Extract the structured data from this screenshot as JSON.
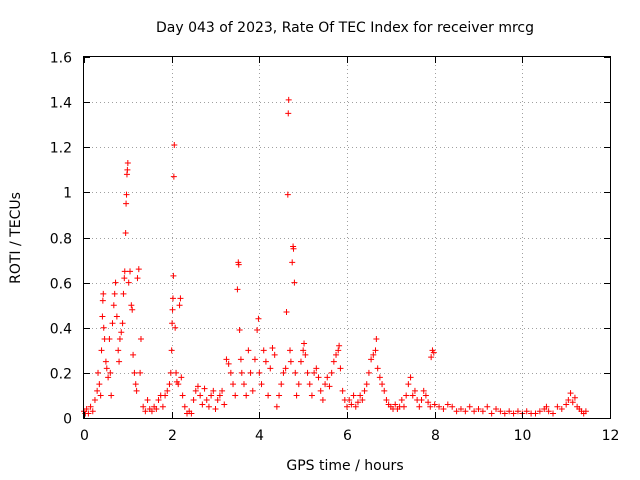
{
  "chart_data": {
    "type": "scatter",
    "title": "Day 043 of 2023, Rate Of TEC Index for receiver mrcg",
    "xlabel": "GPS time / hours",
    "ylabel": "ROTI / TECUs",
    "xlim": [
      0,
      12
    ],
    "ylim": [
      0,
      1.6
    ],
    "x_ticks": [
      "0",
      "2",
      "4",
      "6",
      "8",
      "10",
      "12"
    ],
    "y_ticks": [
      "0",
      "0.2",
      "0.4",
      "0.6",
      "0.8",
      "1",
      "1.2",
      "1.4",
      "1.6"
    ],
    "grid": true,
    "marker": "+",
    "series": [
      {
        "color": "#ff0000",
        "points": [
          [
            0.0,
            0.03
          ],
          [
            0.03,
            0.02
          ],
          [
            0.06,
            0.04
          ],
          [
            0.1,
            0.02
          ],
          [
            0.15,
            0.05
          ],
          [
            0.2,
            0.03
          ],
          [
            0.25,
            0.08
          ],
          [
            0.3,
            0.12
          ],
          [
            0.32,
            0.2
          ],
          [
            0.35,
            0.15
          ],
          [
            0.38,
            0.1
          ],
          [
            0.4,
            0.3
          ],
          [
            0.42,
            0.45
          ],
          [
            0.43,
            0.52
          ],
          [
            0.44,
            0.55
          ],
          [
            0.45,
            0.4
          ],
          [
            0.47,
            0.35
          ],
          [
            0.5,
            0.25
          ],
          [
            0.52,
            0.22
          ],
          [
            0.55,
            0.18
          ],
          [
            0.58,
            0.35
          ],
          [
            0.6,
            0.2
          ],
          [
            0.62,
            0.1
          ],
          [
            0.65,
            0.42
          ],
          [
            0.68,
            0.5
          ],
          [
            0.7,
            0.55
          ],
          [
            0.72,
            0.6
          ],
          [
            0.75,
            0.45
          ],
          [
            0.78,
            0.3
          ],
          [
            0.8,
            0.25
          ],
          [
            0.82,
            0.35
          ],
          [
            0.85,
            0.38
          ],
          [
            0.88,
            0.42
          ],
          [
            0.9,
            0.55
          ],
          [
            0.92,
            0.62
          ],
          [
            0.93,
            0.65
          ],
          [
            0.95,
            0.82
          ],
          [
            0.96,
            0.95
          ],
          [
            0.97,
            0.99
          ],
          [
            0.98,
            1.08
          ],
          [
            0.99,
            1.1
          ],
          [
            1.0,
            1.13
          ],
          [
            1.02,
            0.6
          ],
          [
            1.05,
            0.65
          ],
          [
            1.08,
            0.5
          ],
          [
            1.1,
            0.48
          ],
          [
            1.12,
            0.28
          ],
          [
            1.15,
            0.2
          ],
          [
            1.18,
            0.15
          ],
          [
            1.2,
            0.12
          ],
          [
            1.22,
            0.62
          ],
          [
            1.25,
            0.66
          ],
          [
            1.28,
            0.2
          ],
          [
            1.3,
            0.35
          ],
          [
            1.35,
            0.05
          ],
          [
            1.4,
            0.03
          ],
          [
            1.45,
            0.08
          ],
          [
            1.5,
            0.04
          ],
          [
            1.55,
            0.03
          ],
          [
            1.6,
            0.05
          ],
          [
            1.65,
            0.04
          ],
          [
            1.7,
            0.08
          ],
          [
            1.75,
            0.1
          ],
          [
            1.8,
            0.05
          ],
          [
            1.85,
            0.1
          ],
          [
            1.9,
            0.12
          ],
          [
            1.95,
            0.15
          ],
          [
            1.98,
            0.2
          ],
          [
            2.0,
            0.3
          ],
          [
            2.01,
            0.42
          ],
          [
            2.02,
            0.48
          ],
          [
            2.03,
            0.53
          ],
          [
            2.04,
            0.63
          ],
          [
            2.05,
            1.07
          ],
          [
            2.06,
            1.21
          ],
          [
            2.08,
            0.4
          ],
          [
            2.1,
            0.2
          ],
          [
            2.12,
            0.16
          ],
          [
            2.15,
            0.15
          ],
          [
            2.18,
            0.5
          ],
          [
            2.2,
            0.53
          ],
          [
            2.22,
            0.18
          ],
          [
            2.25,
            0.1
          ],
          [
            2.3,
            0.05
          ],
          [
            2.35,
            0.02
          ],
          [
            2.4,
            0.03
          ],
          [
            2.45,
            0.02
          ],
          [
            2.5,
            0.08
          ],
          [
            2.55,
            0.12
          ],
          [
            2.6,
            0.14
          ],
          [
            2.65,
            0.1
          ],
          [
            2.7,
            0.06
          ],
          [
            2.75,
            0.13
          ],
          [
            2.8,
            0.08
          ],
          [
            2.85,
            0.05
          ],
          [
            2.9,
            0.1
          ],
          [
            2.95,
            0.12
          ],
          [
            3.0,
            0.04
          ],
          [
            3.05,
            0.08
          ],
          [
            3.1,
            0.1
          ],
          [
            3.15,
            0.12
          ],
          [
            3.2,
            0.06
          ],
          [
            3.25,
            0.26
          ],
          [
            3.3,
            0.24
          ],
          [
            3.35,
            0.2
          ],
          [
            3.4,
            0.15
          ],
          [
            3.45,
            0.1
          ],
          [
            3.5,
            0.57
          ],
          [
            3.52,
            0.69
          ],
          [
            3.53,
            0.68
          ],
          [
            3.55,
            0.39
          ],
          [
            3.58,
            0.26
          ],
          [
            3.6,
            0.2
          ],
          [
            3.65,
            0.15
          ],
          [
            3.7,
            0.1
          ],
          [
            3.75,
            0.3
          ],
          [
            3.8,
            0.2
          ],
          [
            3.85,
            0.12
          ],
          [
            3.9,
            0.26
          ],
          [
            3.95,
            0.39
          ],
          [
            3.98,
            0.44
          ],
          [
            4.0,
            0.2
          ],
          [
            4.05,
            0.15
          ],
          [
            4.1,
            0.3
          ],
          [
            4.15,
            0.25
          ],
          [
            4.2,
            0.1
          ],
          [
            4.25,
            0.22
          ],
          [
            4.3,
            0.31
          ],
          [
            4.35,
            0.28
          ],
          [
            4.4,
            0.05
          ],
          [
            4.45,
            0.1
          ],
          [
            4.5,
            0.15
          ],
          [
            4.55,
            0.2
          ],
          [
            4.6,
            0.22
          ],
          [
            4.62,
            0.47
          ],
          [
            4.65,
            0.99
          ],
          [
            4.66,
            1.35
          ],
          [
            4.67,
            1.41
          ],
          [
            4.7,
            0.3
          ],
          [
            4.72,
            0.25
          ],
          [
            4.75,
            0.69
          ],
          [
            4.77,
            0.76
          ],
          [
            4.78,
            0.75
          ],
          [
            4.8,
            0.6
          ],
          [
            4.82,
            0.2
          ],
          [
            4.85,
            0.1
          ],
          [
            4.9,
            0.15
          ],
          [
            4.95,
            0.25
          ],
          [
            5.0,
            0.3
          ],
          [
            5.02,
            0.33
          ],
          [
            5.05,
            0.28
          ],
          [
            5.1,
            0.2
          ],
          [
            5.15,
            0.15
          ],
          [
            5.2,
            0.1
          ],
          [
            5.25,
            0.2
          ],
          [
            5.3,
            0.22
          ],
          [
            5.35,
            0.18
          ],
          [
            5.4,
            0.12
          ],
          [
            5.45,
            0.08
          ],
          [
            5.5,
            0.15
          ],
          [
            5.55,
            0.18
          ],
          [
            5.6,
            0.14
          ],
          [
            5.65,
            0.2
          ],
          [
            5.7,
            0.25
          ],
          [
            5.75,
            0.28
          ],
          [
            5.8,
            0.3
          ],
          [
            5.82,
            0.32
          ],
          [
            5.85,
            0.22
          ],
          [
            5.9,
            0.12
          ],
          [
            5.95,
            0.08
          ],
          [
            6.0,
            0.05
          ],
          [
            6.05,
            0.08
          ],
          [
            6.1,
            0.06
          ],
          [
            6.15,
            0.1
          ],
          [
            6.2,
            0.05
          ],
          [
            6.25,
            0.07
          ],
          [
            6.3,
            0.1
          ],
          [
            6.35,
            0.08
          ],
          [
            6.4,
            0.12
          ],
          [
            6.45,
            0.15
          ],
          [
            6.5,
            0.2
          ],
          [
            6.55,
            0.26
          ],
          [
            6.6,
            0.28
          ],
          [
            6.65,
            0.3
          ],
          [
            6.67,
            0.35
          ],
          [
            6.7,
            0.22
          ],
          [
            6.75,
            0.18
          ],
          [
            6.8,
            0.15
          ],
          [
            6.85,
            0.12
          ],
          [
            6.9,
            0.08
          ],
          [
            6.95,
            0.06
          ],
          [
            7.0,
            0.05
          ],
          [
            7.05,
            0.04
          ],
          [
            7.1,
            0.06
          ],
          [
            7.15,
            0.04
          ],
          [
            7.2,
            0.05
          ],
          [
            7.25,
            0.08
          ],
          [
            7.3,
            0.05
          ],
          [
            7.35,
            0.1
          ],
          [
            7.4,
            0.15
          ],
          [
            7.45,
            0.18
          ],
          [
            7.5,
            0.1
          ],
          [
            7.55,
            0.12
          ],
          [
            7.6,
            0.08
          ],
          [
            7.65,
            0.05
          ],
          [
            7.7,
            0.08
          ],
          [
            7.75,
            0.12
          ],
          [
            7.8,
            0.1
          ],
          [
            7.85,
            0.07
          ],
          [
            7.9,
            0.05
          ],
          [
            7.92,
            0.27
          ],
          [
            7.95,
            0.3
          ],
          [
            7.98,
            0.29
          ],
          [
            8.0,
            0.06
          ],
          [
            8.1,
            0.05
          ],
          [
            8.2,
            0.04
          ],
          [
            8.3,
            0.06
          ],
          [
            8.4,
            0.05
          ],
          [
            8.5,
            0.03
          ],
          [
            8.6,
            0.04
          ],
          [
            8.7,
            0.03
          ],
          [
            8.8,
            0.05
          ],
          [
            8.9,
            0.03
          ],
          [
            9.0,
            0.04
          ],
          [
            9.1,
            0.03
          ],
          [
            9.2,
            0.05
          ],
          [
            9.3,
            0.02
          ],
          [
            9.4,
            0.04
          ],
          [
            9.5,
            0.03
          ],
          [
            9.6,
            0.02
          ],
          [
            9.7,
            0.03
          ],
          [
            9.8,
            0.02
          ],
          [
            9.9,
            0.03
          ],
          [
            10.0,
            0.02
          ],
          [
            10.1,
            0.03
          ],
          [
            10.2,
            0.02
          ],
          [
            10.3,
            0.02
          ],
          [
            10.4,
            0.03
          ],
          [
            10.5,
            0.04
          ],
          [
            10.55,
            0.05
          ],
          [
            10.6,
            0.03
          ],
          [
            10.7,
            0.02
          ],
          [
            10.8,
            0.05
          ],
          [
            10.9,
            0.04
          ],
          [
            11.0,
            0.06
          ],
          [
            11.05,
            0.08
          ],
          [
            11.1,
            0.11
          ],
          [
            11.15,
            0.07
          ],
          [
            11.2,
            0.09
          ],
          [
            11.25,
            0.05
          ],
          [
            11.3,
            0.04
          ],
          [
            11.35,
            0.03
          ],
          [
            11.4,
            0.02
          ],
          [
            11.45,
            0.03
          ]
        ]
      }
    ]
  }
}
